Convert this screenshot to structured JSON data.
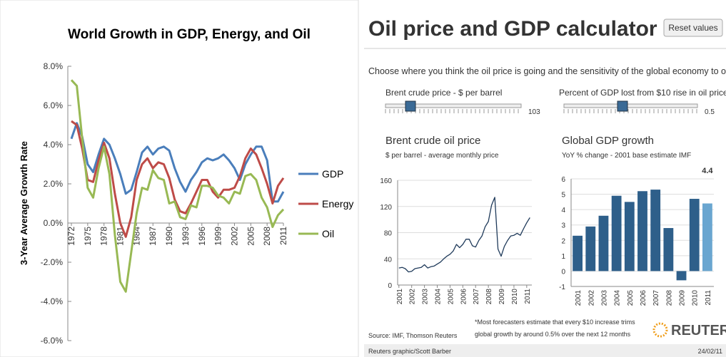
{
  "chart_data": [
    {
      "type": "line",
      "title": "World Growth in GDP, Energy, and Oil",
      "y_label": "3-Year Average Growth Rate",
      "x": [
        1972,
        1973,
        1974,
        1975,
        1976,
        1977,
        1978,
        1979,
        1980,
        1981,
        1982,
        1983,
        1984,
        1985,
        1986,
        1987,
        1988,
        1989,
        1990,
        1991,
        1992,
        1993,
        1994,
        1995,
        1996,
        1997,
        1998,
        1999,
        2000,
        2001,
        2002,
        2003,
        2004,
        2005,
        2006,
        2007,
        2008,
        2009,
        2010,
        2011
      ],
      "xlim": [
        1972,
        2011
      ],
      "xticks": [
        1972,
        1975,
        1978,
        1981,
        1984,
        1987,
        1990,
        1993,
        1996,
        1999,
        2002,
        2005,
        2008,
        2011
      ],
      "ylim": [
        -6,
        8
      ],
      "yticks": [
        {
          "value": -6,
          "label": "-6.0%"
        },
        {
          "value": -4,
          "label": "-4.0%"
        },
        {
          "value": -2,
          "label": "-2.0%"
        },
        {
          "value": 0,
          "label": "0.0%"
        },
        {
          "value": 2,
          "label": "2.0%"
        },
        {
          "value": 4,
          "label": "4.0%"
        },
        {
          "value": 6,
          "label": "6.0%"
        },
        {
          "value": 8,
          "label": "8.0%"
        }
      ],
      "legend": "right",
      "series": [
        {
          "name": "GDP",
          "color": "#4a7ebb",
          "values": [
            4.3,
            5.1,
            4.4,
            3.0,
            2.6,
            3.5,
            4.3,
            4.0,
            3.3,
            2.5,
            1.5,
            1.7,
            2.6,
            3.6,
            3.9,
            3.5,
            3.8,
            3.9,
            3.7,
            2.8,
            2.1,
            1.6,
            2.2,
            2.6,
            3.1,
            3.3,
            3.2,
            3.3,
            3.5,
            3.2,
            2.8,
            2.2,
            3.0,
            3.5,
            3.9,
            3.9,
            3.2,
            1.1,
            1.1,
            1.6
          ]
        },
        {
          "name": "Energy",
          "color": "#be4b48",
          "values": [
            5.2,
            5.0,
            3.8,
            2.2,
            2.1,
            3.2,
            4.1,
            3.3,
            1.5,
            0.0,
            -0.7,
            0.3,
            2.2,
            3.0,
            3.3,
            2.8,
            3.1,
            3.0,
            2.3,
            1.2,
            0.6,
            0.5,
            1.0,
            1.6,
            2.2,
            2.2,
            1.6,
            1.3,
            1.7,
            1.7,
            1.8,
            2.4,
            3.3,
            3.8,
            3.5,
            2.8,
            2.0,
            1.0,
            1.9,
            2.3
          ]
        },
        {
          "name": "Oil",
          "color": "#98b954",
          "values": [
            7.3,
            7.0,
            4.3,
            1.8,
            1.3,
            2.8,
            3.9,
            2.5,
            -0.6,
            -3.0,
            -3.5,
            -1.5,
            0.5,
            1.8,
            1.7,
            2.7,
            2.3,
            2.2,
            1.0,
            1.1,
            0.3,
            0.2,
            0.9,
            0.8,
            1.9,
            1.9,
            1.8,
            1.4,
            1.3,
            1.0,
            1.6,
            1.5,
            2.4,
            2.5,
            2.2,
            1.3,
            0.8,
            -0.2,
            0.4,
            0.7
          ]
        }
      ]
    },
    {
      "type": "line",
      "title": "Brent crude oil price",
      "subtitle": "$ per barrel - average monthly price",
      "color": "#1f3a5a",
      "x": [
        2001,
        2001.25,
        2001.5,
        2001.75,
        2002,
        2002.25,
        2002.5,
        2002.75,
        2003,
        2003.25,
        2003.5,
        2003.75,
        2004,
        2004.25,
        2004.5,
        2004.75,
        2005,
        2005.25,
        2005.5,
        2005.75,
        2006,
        2006.25,
        2006.5,
        2006.75,
        2007,
        2007.25,
        2007.5,
        2007.75,
        2008,
        2008.25,
        2008.5,
        2008.75,
        2009,
        2009.25,
        2009.5,
        2009.75,
        2010,
        2010.25,
        2010.5,
        2010.75,
        2011,
        2011.25
      ],
      "values": [
        26,
        27,
        25,
        20,
        21,
        25,
        26,
        27,
        31,
        26,
        28,
        29,
        32,
        35,
        40,
        44,
        47,
        52,
        62,
        57,
        62,
        70,
        70,
        60,
        58,
        68,
        75,
        89,
        97,
        122,
        134,
        55,
        44,
        59,
        68,
        75,
        76,
        79,
        76,
        86,
        95,
        103
      ],
      "xlim": [
        2000.9,
        2011.4
      ],
      "xticks": [
        2001,
        2002,
        2003,
        2004,
        2005,
        2006,
        2007,
        2008,
        2009,
        2010,
        2011
      ],
      "ylim": [
        0,
        160
      ],
      "yticks": [
        0,
        40,
        80,
        120,
        160
      ]
    },
    {
      "type": "bar",
      "title": "Global GDP growth",
      "subtitle": "YoY % change - 2001 base estimate IMF",
      "color": "#2e5f8a",
      "highlight_color": "#6aa6d0",
      "categories": [
        "2001",
        "2002",
        "2003",
        "2004",
        "2005",
        "2006",
        "2007",
        "2008",
        "2009",
        "2010",
        "2011"
      ],
      "values": [
        2.3,
        2.9,
        3.6,
        4.9,
        4.5,
        5.2,
        5.3,
        2.8,
        -0.6,
        4.7,
        4.4
      ],
      "value_labels": [
        null,
        null,
        null,
        null,
        null,
        null,
        null,
        null,
        null,
        null,
        "4.4"
      ],
      "ylim": [
        -1,
        6
      ],
      "yticks": [
        -1,
        0,
        1,
        2,
        3,
        4,
        5,
        6
      ]
    }
  ],
  "calculator": {
    "title": "Oil price and GDP calculator",
    "reset": "Reset values",
    "intro": "Choose where you think the oil price is going and the sensitivity of the global economy to oil",
    "slider1": {
      "label": "Brent crude price - $ per barrel",
      "value": "103"
    },
    "slider2": {
      "label": "Percent of GDP lost from $10 rise in oil price*",
      "value": "0.5"
    },
    "source": "Source: IMF, Thomson Reuters",
    "note": [
      "*Most forecasters estimate that every $10 increase trims",
      "global growth by around 0.5% over the next 12 months"
    ],
    "brand": "REUTERS",
    "credit": "Reuters graphic/Scott Barber",
    "date": "24/02/11"
  }
}
